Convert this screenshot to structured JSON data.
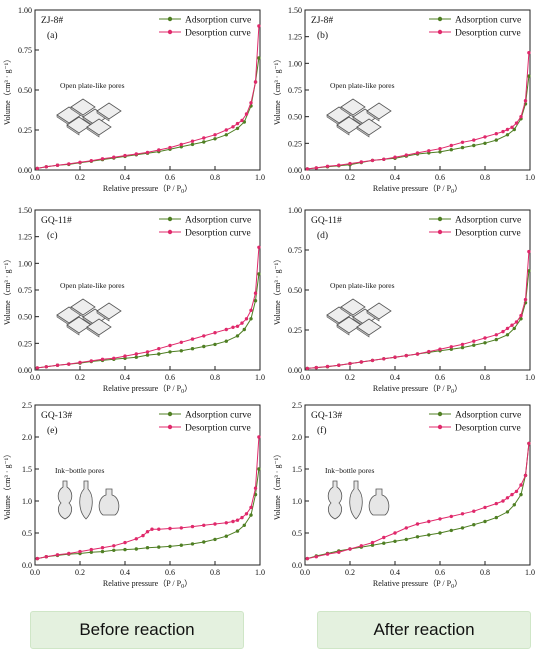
{
  "x_axis_label": "Relative pressure（P / P",
  "x_axis_label_sub": "0",
  "x_axis_label_end": "）",
  "y_axis_label": "Volume（cm³ · g⁻¹）",
  "legend": {
    "adsorption": "Adsorption curve",
    "desorption": "Desorption curve"
  },
  "colors": {
    "adsorption": "#4f7f23",
    "desorption": "#e0296b"
  },
  "captions": {
    "left": "Before reaction",
    "right": "After reaction"
  },
  "chart_data": [
    {
      "type": "line",
      "sample": "ZJ-8#",
      "tag": "(a)",
      "pore_label": "Open plate-like pores",
      "pore_type": "plates",
      "xlim": [
        0,
        1
      ],
      "ylim": [
        0,
        1.0
      ],
      "x_ticks": [
        0.0,
        0.2,
        0.4,
        0.6,
        0.8,
        1.0
      ],
      "y_ticks": [
        0.0,
        0.25,
        0.5,
        0.75,
        1.0
      ],
      "series": [
        {
          "name": "Adsorption curve",
          "x": [
            0.01,
            0.05,
            0.1,
            0.15,
            0.2,
            0.25,
            0.3,
            0.35,
            0.4,
            0.45,
            0.5,
            0.55,
            0.6,
            0.65,
            0.7,
            0.75,
            0.8,
            0.85,
            0.9,
            0.93,
            0.96,
            0.98,
            0.995
          ],
          "y": [
            0.01,
            0.02,
            0.03,
            0.035,
            0.045,
            0.055,
            0.065,
            0.075,
            0.085,
            0.095,
            0.105,
            0.115,
            0.13,
            0.145,
            0.16,
            0.175,
            0.195,
            0.22,
            0.26,
            0.3,
            0.4,
            0.55,
            0.7
          ]
        },
        {
          "name": "Desorption curve",
          "x": [
            0.995,
            0.98,
            0.96,
            0.94,
            0.92,
            0.9,
            0.88,
            0.85,
            0.8,
            0.75,
            0.7,
            0.65,
            0.6,
            0.55,
            0.5,
            0.45,
            0.4,
            0.35,
            0.3,
            0.25,
            0.2,
            0.15,
            0.1,
            0.05,
            0.01
          ],
          "y": [
            0.9,
            0.55,
            0.42,
            0.35,
            0.31,
            0.29,
            0.27,
            0.25,
            0.22,
            0.2,
            0.18,
            0.16,
            0.14,
            0.125,
            0.11,
            0.1,
            0.09,
            0.08,
            0.07,
            0.058,
            0.048,
            0.038,
            0.03,
            0.02,
            0.01
          ]
        }
      ]
    },
    {
      "type": "line",
      "sample": "ZJ-8#",
      "tag": "(b)",
      "pore_label": "Open plate-like pores",
      "pore_type": "plates",
      "xlim": [
        0,
        1
      ],
      "ylim": [
        0,
        1.5
      ],
      "x_ticks": [
        0.0,
        0.2,
        0.4,
        0.6,
        0.8,
        1.0
      ],
      "y_ticks": [
        0.0,
        0.25,
        0.5,
        0.75,
        1.0,
        1.25,
        1.5
      ],
      "series": [
        {
          "name": "Adsorption curve",
          "x": [
            0.01,
            0.05,
            0.1,
            0.15,
            0.2,
            0.25,
            0.3,
            0.35,
            0.4,
            0.45,
            0.5,
            0.55,
            0.6,
            0.65,
            0.7,
            0.75,
            0.8,
            0.85,
            0.9,
            0.93,
            0.96,
            0.98,
            0.995
          ],
          "y": [
            0.01,
            0.02,
            0.03,
            0.04,
            0.05,
            0.07,
            0.09,
            0.1,
            0.11,
            0.13,
            0.15,
            0.16,
            0.17,
            0.19,
            0.21,
            0.23,
            0.25,
            0.28,
            0.33,
            0.38,
            0.48,
            0.62,
            0.88
          ]
        },
        {
          "name": "Desorption curve",
          "x": [
            0.995,
            0.98,
            0.96,
            0.94,
            0.92,
            0.9,
            0.88,
            0.85,
            0.8,
            0.75,
            0.7,
            0.65,
            0.6,
            0.55,
            0.5,
            0.45,
            0.4,
            0.35,
            0.3,
            0.25,
            0.2,
            0.15,
            0.1,
            0.05,
            0.01
          ],
          "y": [
            1.1,
            0.65,
            0.5,
            0.44,
            0.4,
            0.38,
            0.36,
            0.34,
            0.31,
            0.28,
            0.26,
            0.23,
            0.2,
            0.18,
            0.16,
            0.14,
            0.12,
            0.1,
            0.09,
            0.075,
            0.06,
            0.045,
            0.035,
            0.02,
            0.01
          ]
        }
      ]
    },
    {
      "type": "line",
      "sample": "GQ-11#",
      "tag": "(c)",
      "pore_label": "Open plate-like pores",
      "pore_type": "plates",
      "xlim": [
        0,
        1
      ],
      "ylim": [
        0,
        1.5
      ],
      "x_ticks": [
        0.0,
        0.2,
        0.4,
        0.6,
        0.8,
        1.0
      ],
      "y_ticks": [
        0.0,
        0.25,
        0.5,
        0.75,
        1.0,
        1.25,
        1.5
      ],
      "series": [
        {
          "name": "Adsorption curve",
          "x": [
            0.01,
            0.05,
            0.1,
            0.15,
            0.2,
            0.25,
            0.3,
            0.35,
            0.4,
            0.45,
            0.5,
            0.55,
            0.6,
            0.65,
            0.7,
            0.75,
            0.8,
            0.85,
            0.9,
            0.93,
            0.96,
            0.98,
            0.995
          ],
          "y": [
            0.02,
            0.03,
            0.045,
            0.055,
            0.065,
            0.08,
            0.09,
            0.1,
            0.11,
            0.12,
            0.14,
            0.15,
            0.17,
            0.18,
            0.2,
            0.22,
            0.24,
            0.27,
            0.32,
            0.38,
            0.48,
            0.65,
            0.9
          ]
        },
        {
          "name": "Desorption curve",
          "x": [
            0.995,
            0.98,
            0.96,
            0.94,
            0.92,
            0.9,
            0.88,
            0.85,
            0.8,
            0.75,
            0.7,
            0.65,
            0.6,
            0.55,
            0.5,
            0.45,
            0.4,
            0.35,
            0.3,
            0.25,
            0.2,
            0.15,
            0.1,
            0.05,
            0.01
          ],
          "y": [
            1.15,
            0.72,
            0.56,
            0.48,
            0.44,
            0.41,
            0.4,
            0.38,
            0.35,
            0.32,
            0.29,
            0.26,
            0.23,
            0.2,
            0.17,
            0.15,
            0.13,
            0.11,
            0.1,
            0.085,
            0.07,
            0.055,
            0.045,
            0.03,
            0.02
          ]
        }
      ]
    },
    {
      "type": "line",
      "sample": "GQ-11#",
      "tag": "(d)",
      "pore_label": "Open plate-like pores",
      "pore_type": "plates",
      "xlim": [
        0,
        1
      ],
      "ylim": [
        0,
        1.0
      ],
      "x_ticks": [
        0.0,
        0.2,
        0.4,
        0.6,
        0.8,
        1.0
      ],
      "y_ticks": [
        0.0,
        0.25,
        0.5,
        0.75,
        1.0
      ],
      "series": [
        {
          "name": "Adsorption curve",
          "x": [
            0.01,
            0.05,
            0.1,
            0.15,
            0.2,
            0.25,
            0.3,
            0.35,
            0.4,
            0.45,
            0.5,
            0.55,
            0.6,
            0.65,
            0.7,
            0.75,
            0.8,
            0.85,
            0.9,
            0.93,
            0.96,
            0.98,
            0.995
          ],
          "y": [
            0.01,
            0.015,
            0.02,
            0.03,
            0.04,
            0.05,
            0.06,
            0.07,
            0.08,
            0.09,
            0.1,
            0.11,
            0.12,
            0.13,
            0.14,
            0.155,
            0.17,
            0.19,
            0.22,
            0.26,
            0.32,
            0.42,
            0.62
          ]
        },
        {
          "name": "Desorption curve",
          "x": [
            0.995,
            0.98,
            0.96,
            0.94,
            0.92,
            0.9,
            0.88,
            0.85,
            0.8,
            0.75,
            0.7,
            0.65,
            0.6,
            0.55,
            0.5,
            0.45,
            0.4,
            0.35,
            0.3,
            0.25,
            0.2,
            0.15,
            0.1,
            0.05,
            0.01
          ],
          "y": [
            0.74,
            0.44,
            0.34,
            0.3,
            0.28,
            0.26,
            0.24,
            0.22,
            0.2,
            0.18,
            0.16,
            0.145,
            0.13,
            0.115,
            0.1,
            0.09,
            0.08,
            0.07,
            0.06,
            0.05,
            0.04,
            0.03,
            0.022,
            0.015,
            0.01
          ]
        }
      ]
    },
    {
      "type": "line",
      "sample": "GQ-13#",
      "tag": "(e)",
      "pore_label": "Ink−bottle pores",
      "pore_type": "bottles",
      "xlim": [
        0,
        1
      ],
      "ylim": [
        0,
        2.5
      ],
      "x_ticks": [
        0.0,
        0.2,
        0.4,
        0.6,
        0.8,
        1.0
      ],
      "y_ticks": [
        0.0,
        0.5,
        1.0,
        1.5,
        2.0,
        2.5
      ],
      "series": [
        {
          "name": "Adsorption curve",
          "x": [
            0.01,
            0.05,
            0.1,
            0.15,
            0.2,
            0.25,
            0.3,
            0.35,
            0.4,
            0.45,
            0.5,
            0.55,
            0.6,
            0.65,
            0.7,
            0.75,
            0.8,
            0.85,
            0.9,
            0.93,
            0.96,
            0.98,
            0.995
          ],
          "y": [
            0.1,
            0.13,
            0.15,
            0.17,
            0.18,
            0.2,
            0.21,
            0.23,
            0.24,
            0.25,
            0.27,
            0.28,
            0.29,
            0.31,
            0.33,
            0.36,
            0.4,
            0.45,
            0.53,
            0.62,
            0.78,
            1.1,
            1.5
          ]
        },
        {
          "name": "Desorption curve",
          "x": [
            0.995,
            0.98,
            0.96,
            0.94,
            0.92,
            0.9,
            0.88,
            0.85,
            0.8,
            0.75,
            0.7,
            0.65,
            0.6,
            0.55,
            0.52,
            0.5,
            0.48,
            0.45,
            0.4,
            0.35,
            0.3,
            0.25,
            0.2,
            0.15,
            0.1,
            0.05,
            0.01
          ],
          "y": [
            2.0,
            1.2,
            0.9,
            0.8,
            0.74,
            0.7,
            0.68,
            0.66,
            0.64,
            0.62,
            0.6,
            0.58,
            0.57,
            0.56,
            0.56,
            0.52,
            0.46,
            0.41,
            0.35,
            0.3,
            0.27,
            0.24,
            0.21,
            0.18,
            0.16,
            0.13,
            0.1
          ]
        }
      ]
    },
    {
      "type": "line",
      "sample": "GQ-13#",
      "tag": "(f)",
      "pore_label": "Ink−bottle pores",
      "pore_type": "bottles",
      "xlim": [
        0,
        1
      ],
      "ylim": [
        0,
        2.5
      ],
      "x_ticks": [
        0.0,
        0.2,
        0.4,
        0.6,
        0.8,
        1.0
      ],
      "y_ticks": [
        0.0,
        0.5,
        1.0,
        1.5,
        2.0,
        2.5
      ],
      "series": [
        {
          "name": "Adsorption curve",
          "x": [
            0.01,
            0.05,
            0.1,
            0.15,
            0.2,
            0.25,
            0.3,
            0.35,
            0.4,
            0.45,
            0.5,
            0.55,
            0.6,
            0.65,
            0.7,
            0.75,
            0.8,
            0.85,
            0.9,
            0.93,
            0.96,
            0.98,
            0.995
          ],
          "y": [
            0.1,
            0.14,
            0.18,
            0.22,
            0.25,
            0.28,
            0.31,
            0.34,
            0.37,
            0.4,
            0.44,
            0.47,
            0.5,
            0.54,
            0.58,
            0.63,
            0.68,
            0.74,
            0.83,
            0.94,
            1.1,
            1.4,
            1.9
          ]
        },
        {
          "name": "Desorption curve",
          "x": [
            0.995,
            0.98,
            0.96,
            0.94,
            0.92,
            0.9,
            0.88,
            0.85,
            0.8,
            0.75,
            0.7,
            0.65,
            0.6,
            0.55,
            0.5,
            0.45,
            0.4,
            0.35,
            0.3,
            0.25,
            0.2,
            0.15,
            0.1,
            0.05,
            0.01
          ],
          "y": [
            1.9,
            1.4,
            1.25,
            1.15,
            1.1,
            1.05,
            1.0,
            0.96,
            0.9,
            0.84,
            0.8,
            0.76,
            0.72,
            0.68,
            0.64,
            0.58,
            0.5,
            0.43,
            0.35,
            0.3,
            0.25,
            0.2,
            0.17,
            0.13,
            0.1
          ]
        }
      ]
    }
  ]
}
